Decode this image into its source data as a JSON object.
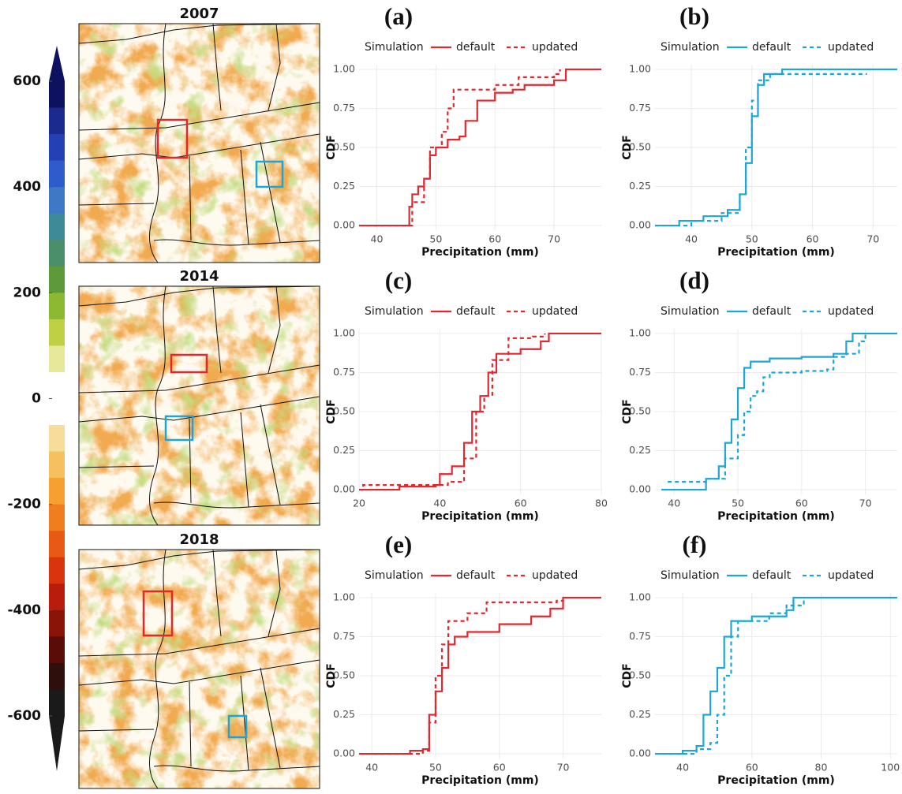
{
  "chart_data": [
    {
      "type": "colorbar",
      "ylim": [
        -600,
        600
      ],
      "yticks": [
        -600,
        -400,
        -200,
        0,
        200,
        400,
        600
      ],
      "colors": [
        "#0e1160",
        "#1b2a8e",
        "#2340b4",
        "#2f5ccc",
        "#3f78c4",
        "#3f8a98",
        "#4a8f6a",
        "#5c9a3a",
        "#8cb832",
        "#c0d045",
        "#e8e89a",
        "#ffffff",
        "#ffffff",
        "#f7dc9a",
        "#f5c060",
        "#f5a030",
        "#f07e1e",
        "#e85a14",
        "#d8340e",
        "#b81c0c",
        "#8a1408",
        "#5a0c08",
        "#2e0f0c",
        "#1a1a1a"
      ]
    },
    {
      "type": "map",
      "title": "2007"
    },
    {
      "type": "map",
      "title": "2014"
    },
    {
      "type": "map",
      "title": "2018"
    },
    {
      "type": "cdf",
      "title": "(a)",
      "legend_title": "Simulation",
      "xlabel": "Precipitation (mm)",
      "ylabel": "CDF",
      "grid": true,
      "xlim": [
        37,
        78
      ],
      "xticks": [
        40,
        50,
        60,
        70
      ],
      "ylim": [
        -0.03,
        1.03
      ],
      "yticks": [
        {
          "value": 0,
          "label": "0.00"
        },
        {
          "value": 0.25,
          "label": "0.25"
        },
        {
          "value": 0.5,
          "label": "0.50"
        },
        {
          "value": 0.75,
          "label": "0.75"
        },
        {
          "value": 1,
          "label": "1.00"
        }
      ],
      "series": [
        {
          "name": "default",
          "color": "#e0282e",
          "linestyle": "solid",
          "x": [
            37,
            45,
            45.5,
            46,
            47,
            48,
            49,
            50,
            52,
            54,
            55,
            56,
            57,
            60,
            63,
            65,
            70,
            72,
            78
          ],
          "values": [
            0,
            0,
            0.12,
            0.2,
            0.25,
            0.3,
            0.45,
            0.5,
            0.55,
            0.57,
            0.67,
            0.67,
            0.8,
            0.85,
            0.87,
            0.9,
            0.93,
            1,
            1
          ]
        },
        {
          "name": "updated",
          "color": "#e0282e",
          "linestyle": "dashed",
          "x": [
            37,
            45,
            46,
            48,
            49,
            51,
            52,
            53,
            60,
            64,
            70,
            71
          ],
          "values": [
            0,
            0,
            0.15,
            0.3,
            0.5,
            0.6,
            0.75,
            0.87,
            0.9,
            0.95,
            0.97,
            1
          ]
        }
      ]
    },
    {
      "type": "cdf",
      "title": "(b)",
      "legend_title": "Simulation",
      "xlabel": "Precipitation (mm)",
      "ylabel": "CDF",
      "grid": true,
      "xlim": [
        34,
        74
      ],
      "xticks": [
        40,
        50,
        60,
        70
      ],
      "ylim": [
        -0.03,
        1.03
      ],
      "yticks": [
        {
          "value": 0,
          "label": "0.00"
        },
        {
          "value": 0.25,
          "label": "0.25"
        },
        {
          "value": 0.5,
          "label": "0.50"
        },
        {
          "value": 0.75,
          "label": "0.75"
        },
        {
          "value": 1,
          "label": "1.00"
        }
      ],
      "series": [
        {
          "name": "default",
          "color": "#1aa7d8",
          "linestyle": "solid",
          "x": [
            34,
            38,
            42,
            46,
            48,
            49,
            50,
            51,
            52,
            55,
            74
          ],
          "values": [
            0,
            0.03,
            0.06,
            0.1,
            0.2,
            0.4,
            0.7,
            0.9,
            0.97,
            1,
            1
          ]
        },
        {
          "name": "updated",
          "color": "#1aa7d8",
          "linestyle": "dashed",
          "x": [
            34,
            40,
            45,
            48,
            49,
            50,
            51,
            53,
            69
          ],
          "values": [
            0,
            0.03,
            0.08,
            0.2,
            0.5,
            0.8,
            0.93,
            0.97,
            0.97
          ]
        }
      ]
    },
    {
      "type": "cdf",
      "title": "(c)",
      "legend_title": "Simulation",
      "xlabel": "Precipitation (mm)",
      "ylabel": "CDF",
      "grid": true,
      "xlim": [
        20,
        80
      ],
      "xticks": [
        20,
        40,
        60,
        80
      ],
      "ylim": [
        -0.03,
        1.03
      ],
      "yticks": [
        {
          "value": 0,
          "label": "0.00"
        },
        {
          "value": 0.25,
          "label": "0.25"
        },
        {
          "value": 0.5,
          "label": "0.50"
        },
        {
          "value": 0.75,
          "label": "0.75"
        },
        {
          "value": 1,
          "label": "1.00"
        }
      ],
      "series": [
        {
          "name": "default",
          "color": "#e0282e",
          "linestyle": "solid",
          "x": [
            20,
            29,
            30,
            39,
            40,
            43,
            46,
            48,
            50,
            52,
            54,
            60,
            65,
            67,
            80
          ],
          "values": [
            0,
            0,
            0.02,
            0.03,
            0.1,
            0.15,
            0.3,
            0.5,
            0.6,
            0.75,
            0.87,
            0.9,
            0.95,
            1,
            1
          ]
        },
        {
          "name": "updated",
          "color": "#e0282e",
          "linestyle": "dashed",
          "x": [
            20,
            21,
            39,
            42,
            46,
            49,
            51,
            53,
            57,
            63,
            66
          ],
          "values": [
            0,
            0.03,
            0.03,
            0.05,
            0.2,
            0.5,
            0.6,
            0.83,
            0.97,
            0.98,
            1
          ]
        }
      ]
    },
    {
      "type": "cdf",
      "title": "(d)",
      "legend_title": "Simulation",
      "xlabel": "Precipitation (mm)",
      "ylabel": "CDF",
      "grid": true,
      "xlim": [
        37,
        75
      ],
      "xticks": [
        40,
        50,
        60,
        70
      ],
      "ylim": [
        -0.03,
        1.03
      ],
      "yticks": [
        {
          "value": 0,
          "label": "0.00"
        },
        {
          "value": 0.25,
          "label": "0.25"
        },
        {
          "value": 0.5,
          "label": "0.50"
        },
        {
          "value": 0.75,
          "label": "0.75"
        },
        {
          "value": 1,
          "label": "1.00"
        }
      ],
      "series": [
        {
          "name": "default",
          "color": "#1aa7d8",
          "linestyle": "solid",
          "x": [
            38,
            44.5,
            45,
            47,
            48,
            49,
            50,
            51,
            52,
            55,
            60,
            65,
            67,
            68,
            75
          ],
          "values": [
            0,
            0,
            0.07,
            0.15,
            0.3,
            0.45,
            0.65,
            0.78,
            0.82,
            0.84,
            0.85,
            0.87,
            0.95,
            1,
            1
          ]
        },
        {
          "name": "updated",
          "color": "#1aa7d8",
          "linestyle": "dashed",
          "x": [
            39,
            45,
            48,
            50,
            51,
            52,
            53,
            54,
            55,
            60,
            64,
            65,
            67,
            69,
            70
          ],
          "values": [
            0.05,
            0.07,
            0.2,
            0.35,
            0.5,
            0.6,
            0.63,
            0.72,
            0.75,
            0.76,
            0.77,
            0.85,
            0.87,
            0.95,
            1
          ]
        }
      ]
    },
    {
      "type": "cdf",
      "title": "(e)",
      "legend_title": "Simulation",
      "xlabel": "Precipitation (mm)",
      "ylabel": "CDF",
      "grid": true,
      "xlim": [
        38,
        76
      ],
      "xticks": [
        40,
        50,
        60,
        70
      ],
      "ylim": [
        -0.03,
        1.03
      ],
      "yticks": [
        {
          "value": 0,
          "label": "0.00"
        },
        {
          "value": 0.25,
          "label": "0.25"
        },
        {
          "value": 0.5,
          "label": "0.50"
        },
        {
          "value": 0.75,
          "label": "0.75"
        },
        {
          "value": 1,
          "label": "1.00"
        }
      ],
      "series": [
        {
          "name": "default",
          "color": "#e0282e",
          "linestyle": "solid",
          "x": [
            38,
            44,
            46,
            48,
            49,
            50,
            51,
            52,
            53,
            55,
            60,
            65,
            68,
            70,
            76
          ],
          "values": [
            0,
            0,
            0.02,
            0.03,
            0.25,
            0.4,
            0.55,
            0.7,
            0.75,
            0.78,
            0.83,
            0.88,
            0.93,
            1,
            1
          ]
        },
        {
          "name": "updated",
          "color": "#e0282e",
          "linestyle": "dashed",
          "x": [
            38,
            48,
            49,
            50,
            51,
            52,
            55,
            58,
            69,
            70
          ],
          "values": [
            0,
            0.02,
            0.2,
            0.5,
            0.7,
            0.85,
            0.9,
            0.97,
            0.98,
            1
          ]
        }
      ]
    },
    {
      "type": "cdf",
      "title": "(f)",
      "legend_title": "Simulation",
      "xlabel": "Precipitation (mm)",
      "ylabel": "CDF",
      "grid": true,
      "xlim": [
        32,
        102
      ],
      "xticks": [
        40,
        60,
        80,
        100
      ],
      "ylim": [
        -0.03,
        1.03
      ],
      "yticks": [
        {
          "value": 0,
          "label": "0.00"
        },
        {
          "value": 0.25,
          "label": "0.25"
        },
        {
          "value": 0.5,
          "label": "0.50"
        },
        {
          "value": 0.75,
          "label": "0.75"
        },
        {
          "value": 1,
          "label": "1.00"
        }
      ],
      "series": [
        {
          "name": "default",
          "color": "#1aa7d8",
          "linestyle": "solid",
          "x": [
            32,
            40,
            44,
            46,
            48,
            50,
            52,
            54,
            60,
            70,
            72,
            102
          ],
          "values": [
            0,
            0.02,
            0.05,
            0.25,
            0.4,
            0.55,
            0.75,
            0.85,
            0.88,
            0.92,
            1,
            1
          ]
        },
        {
          "name": "updated",
          "color": "#1aa7d8",
          "linestyle": "dashed",
          "x": [
            32,
            44,
            48,
            50,
            52,
            54,
            56,
            65,
            70,
            75
          ],
          "values": [
            0,
            0.03,
            0.07,
            0.25,
            0.5,
            0.75,
            0.85,
            0.9,
            0.95,
            1
          ]
        }
      ]
    }
  ]
}
